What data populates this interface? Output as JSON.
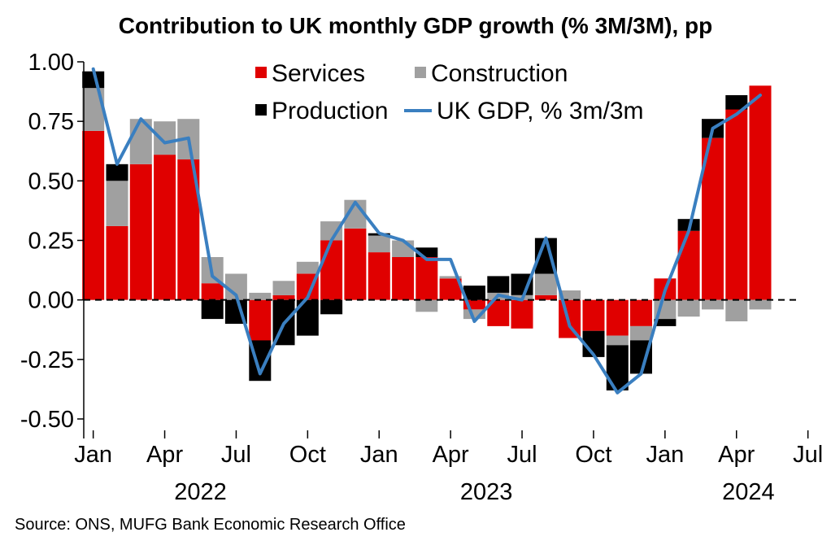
{
  "title": "Contribution to UK monthly GDP growth (% 3M/3M), pp",
  "source": "Source: ONS, MUFG Bank Economic Research Office",
  "chart_data": {
    "type": "bar",
    "stacked": true,
    "months": [
      "Jan 2022",
      "Feb 2022",
      "Mar 2022",
      "Apr 2022",
      "May 2022",
      "Jun 2022",
      "Jul 2022",
      "Aug 2022",
      "Sep 2022",
      "Oct 2022",
      "Nov 2022",
      "Dec 2022",
      "Jan 2023",
      "Feb 2023",
      "Mar 2023",
      "Apr 2023",
      "May 2023",
      "Jun 2023",
      "Jul 2023",
      "Aug 2023",
      "Sep 2023",
      "Oct 2023",
      "Nov 2023",
      "Dec 2023",
      "Jan 2024",
      "Feb 2024",
      "Mar 2024",
      "Apr 2024",
      "May 2024",
      "Jun 2024"
    ],
    "series": [
      {
        "name": "Services",
        "kind": "bar",
        "color": "#e00000",
        "values": [
          0.71,
          0.31,
          0.57,
          0.61,
          0.59,
          0.07,
          0.0,
          -0.17,
          0.02,
          0.11,
          0.25,
          0.3,
          0.2,
          0.18,
          0.18,
          0.09,
          -0.04,
          -0.11,
          -0.12,
          0.02,
          -0.16,
          -0.13,
          -0.15,
          -0.11,
          0.09,
          0.29,
          0.68,
          0.8,
          0.9,
          null
        ]
      },
      {
        "name": "Construction",
        "kind": "bar",
        "color": "#a0a0a0",
        "values": [
          0.18,
          0.19,
          0.19,
          0.14,
          0.17,
          0.11,
          0.11,
          0.03,
          0.06,
          0.05,
          0.08,
          0.12,
          0.07,
          0.07,
          -0.05,
          0.01,
          -0.04,
          0.03,
          0.02,
          0.09,
          0.04,
          0.0,
          -0.04,
          -0.06,
          -0.08,
          -0.07,
          -0.04,
          -0.09,
          -0.04,
          null
        ]
      },
      {
        "name": "Production",
        "kind": "bar",
        "color": "#000000",
        "values": [
          0.07,
          0.07,
          0.0,
          0.0,
          0.0,
          -0.08,
          -0.1,
          -0.17,
          -0.19,
          -0.15,
          -0.06,
          0.0,
          0.01,
          0.0,
          0.04,
          0.0,
          0.06,
          0.07,
          0.09,
          0.15,
          0.0,
          -0.11,
          -0.19,
          -0.14,
          -0.03,
          0.05,
          0.08,
          0.06,
          0.0,
          null
        ]
      },
      {
        "name": "UK GDP, % 3m/3m",
        "kind": "line",
        "color": "#3a7fc0",
        "values": [
          0.97,
          0.57,
          0.76,
          0.66,
          0.68,
          0.1,
          0.02,
          -0.31,
          -0.1,
          0.01,
          0.25,
          0.41,
          0.28,
          0.25,
          0.17,
          0.17,
          -0.09,
          0.02,
          0.0,
          0.26,
          -0.11,
          -0.23,
          -0.39,
          -0.31,
          0.04,
          0.29,
          0.72,
          0.78,
          0.86,
          null
        ]
      }
    ],
    "ylim": [
      -0.5,
      1.0
    ],
    "yticks": [
      "1.00",
      "0.75",
      "0.50",
      "0.25",
      "0.00",
      "-0.25",
      "-0.50"
    ],
    "ytick_values": [
      1.0,
      0.75,
      0.5,
      0.25,
      0.0,
      -0.25,
      -0.5
    ],
    "xticks": [
      {
        "month_index": 0,
        "label": "Jan"
      },
      {
        "month_index": 3,
        "label": "Apr"
      },
      {
        "month_index": 6,
        "label": "Jul"
      },
      {
        "month_index": 9,
        "label": "Oct"
      },
      {
        "month_index": 12,
        "label": "Jan"
      },
      {
        "month_index": 15,
        "label": "Apr"
      },
      {
        "month_index": 18,
        "label": "Jul"
      },
      {
        "month_index": 21,
        "label": "Oct"
      },
      {
        "month_index": 24,
        "label": "Jan"
      },
      {
        "month_index": 27,
        "label": "Apr"
      },
      {
        "month_index": 30,
        "label": "Jul"
      }
    ],
    "years": [
      {
        "month_index": 4.5,
        "label": "2022"
      },
      {
        "month_index": 16.5,
        "label": "2023"
      },
      {
        "month_index": 27.5,
        "label": "2024"
      }
    ],
    "legend": {
      "placement": "top-center",
      "entries": [
        {
          "label": "Services",
          "color": "#e00000",
          "style": "square"
        },
        {
          "label": "Construction",
          "color": "#a0a0a0",
          "style": "square"
        },
        {
          "label": "Production",
          "color": "#000000",
          "style": "square"
        },
        {
          "label": "UK GDP, % 3m/3m",
          "color": "#3a7fc0",
          "style": "line"
        }
      ]
    },
    "zero_line": "dashed",
    "grid": false
  }
}
